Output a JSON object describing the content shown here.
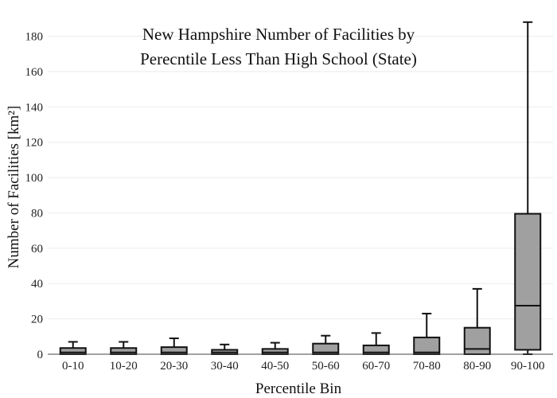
{
  "chart_data": {
    "type": "box",
    "title_lines": [
      "New Hampshire Number of Facilities by",
      "Perecntile Less Than High School (State)"
    ],
    "xlabel": "Percentile Bin",
    "ylabel": "Number of Facilities  [km²]",
    "ylim": [
      0,
      187
    ],
    "yticks": [
      0,
      20,
      40,
      60,
      80,
      100,
      120,
      140,
      160,
      180
    ],
    "grid": true,
    "legend": "none",
    "box_color": "#a0a0a0",
    "line_color": "#111111",
    "categories": [
      "0-10",
      "10-20",
      "20-30",
      "30-40",
      "40-50",
      "50-60",
      "60-70",
      "70-80",
      "80-90",
      "90-100"
    ],
    "boxes": [
      {
        "category": "0-10",
        "min": 0,
        "q1": 0,
        "median": 1,
        "q3": 3.5,
        "max": 7
      },
      {
        "category": "10-20",
        "min": 0,
        "q1": 0,
        "median": 1,
        "q3": 3.5,
        "max": 7
      },
      {
        "category": "20-30",
        "min": 0,
        "q1": 0,
        "median": 1,
        "q3": 4,
        "max": 9
      },
      {
        "category": "30-40",
        "min": 0,
        "q1": 0,
        "median": 1,
        "q3": 2.5,
        "max": 5.5
      },
      {
        "category": "40-50",
        "min": 0,
        "q1": 0,
        "median": 1,
        "q3": 3,
        "max": 6.5
      },
      {
        "category": "50-60",
        "min": 0,
        "q1": 0,
        "median": 1,
        "q3": 6,
        "max": 10.5
      },
      {
        "category": "60-70",
        "min": 0,
        "q1": 0,
        "median": 1,
        "q3": 5,
        "max": 12
      },
      {
        "category": "70-80",
        "min": 0,
        "q1": 0,
        "median": 1,
        "q3": 9.5,
        "max": 23
      },
      {
        "category": "80-90",
        "min": 0,
        "q1": 0,
        "median": 3,
        "q3": 15,
        "max": 37
      },
      {
        "category": "90-100",
        "min": 0,
        "q1": 2.5,
        "median": 27.5,
        "q3": 79.5,
        "max": 188
      }
    ]
  }
}
